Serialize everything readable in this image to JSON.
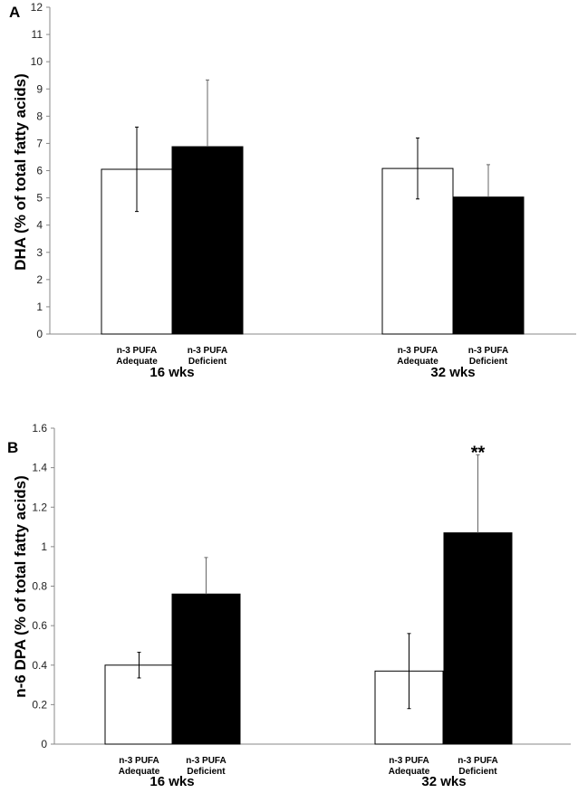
{
  "chart_data": [
    {
      "type": "bar",
      "panel_label": "A",
      "ylabel": "DHA (% of total fatty acids)",
      "ylim": [
        0,
        12
      ],
      "yticks": [
        "0",
        "1",
        "2",
        "3",
        "4",
        "5",
        "6",
        "7",
        "8",
        "9",
        "10",
        "11",
        "12"
      ],
      "groups": [
        "16 wks",
        "32 wks"
      ],
      "categories": [
        [
          "n-3 PUFA",
          "Adequate"
        ],
        [
          "n-3 PUFA",
          "Deficient"
        ]
      ],
      "series": [
        {
          "name": "n-3 PUFA Adequate",
          "color": "#ffffff",
          "values": [
            6.05,
            6.08
          ],
          "error": [
            1.55,
            1.12
          ]
        },
        {
          "name": "n-3 PUFA Deficient",
          "color": "#000000",
          "values": [
            6.88,
            5.03
          ],
          "error": [
            2.45,
            1.19
          ]
        }
      ],
      "annotations": []
    },
    {
      "type": "bar",
      "panel_label": "B",
      "ylabel": "n-6 DPA (% of total fatty acids)",
      "ylim": [
        0,
        1.6
      ],
      "yticks": [
        "0",
        "0.2",
        "0.4",
        "0.6",
        "0.8",
        "1",
        "1.2",
        "1.4",
        "1.6"
      ],
      "groups": [
        "16 wks",
        "32 wks"
      ],
      "categories": [
        [
          "n-3 PUFA",
          "Adequate"
        ],
        [
          "n-3 PUFA",
          "Deficient"
        ]
      ],
      "series": [
        {
          "name": "n-3 PUFA Adequate",
          "color": "#ffffff",
          "values": [
            0.4,
            0.37
          ],
          "error": [
            0.065,
            0.19
          ]
        },
        {
          "name": "n-3 PUFA Deficient",
          "color": "#000000",
          "values": [
            0.76,
            1.07
          ],
          "error": [
            0.185,
            0.395
          ]
        }
      ],
      "annotations": [
        {
          "text": "**",
          "group": 1,
          "series": 1
        }
      ]
    }
  ]
}
